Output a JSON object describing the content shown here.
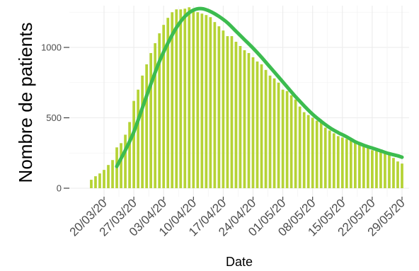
{
  "chart_data": {
    "type": "bar",
    "xlabel": "Date",
    "ylabel": "Nombre de patients",
    "x_ticks": [
      "20/03/20",
      "27/03/20",
      "03/04/20",
      "10/04/20",
      "17/04/20",
      "24/04/20",
      "01/05/20",
      "08/05/20",
      "15/05/20",
      "22/05/20",
      "29/05/20"
    ],
    "y_ticks": [
      0,
      500,
      1000
    ],
    "ylim": [
      0,
      1290
    ],
    "grid": true,
    "legend": "none",
    "series": [
      {
        "type": "bar",
        "color": "#b5d335",
        "x": [
          "17/03/20",
          "18/03/20",
          "19/03/20",
          "20/03/20",
          "21/03/20",
          "22/03/20",
          "23/03/20",
          "24/03/20",
          "25/03/20",
          "26/03/20",
          "27/03/20",
          "28/03/20",
          "29/03/20",
          "30/03/20",
          "31/03/20",
          "01/04/20",
          "02/04/20",
          "03/04/20",
          "04/04/20",
          "05/04/20",
          "06/04/20",
          "07/04/20",
          "08/04/20",
          "09/04/20",
          "10/04/20",
          "11/04/20",
          "12/04/20",
          "13/04/20",
          "14/04/20",
          "15/04/20",
          "16/04/20",
          "17/04/20",
          "18/04/20",
          "19/04/20",
          "20/04/20",
          "21/04/20",
          "22/04/20",
          "23/04/20",
          "24/04/20",
          "25/04/20",
          "26/04/20",
          "27/04/20",
          "28/04/20",
          "29/04/20",
          "30/04/20",
          "01/05/20",
          "02/05/20",
          "03/05/20",
          "04/05/20",
          "05/05/20",
          "06/05/20",
          "07/05/20",
          "08/05/20",
          "09/05/20",
          "10/05/20",
          "11/05/20",
          "12/05/20",
          "13/05/20",
          "14/05/20",
          "15/05/20",
          "16/05/20",
          "17/05/20",
          "18/05/20",
          "19/05/20",
          "20/05/20",
          "21/05/20",
          "22/05/20",
          "23/05/20",
          "24/05/20",
          "25/05/20",
          "26/05/20",
          "27/05/20",
          "28/05/20",
          "29/05/20"
        ],
        "values": [
          60,
          85,
          105,
          130,
          165,
          200,
          290,
          320,
          380,
          470,
          620,
          700,
          800,
          880,
          960,
          1030,
          1100,
          1160,
          1210,
          1250,
          1270,
          1270,
          1275,
          1285,
          1270,
          1250,
          1240,
          1230,
          1215,
          1180,
          1150,
          1120,
          1080,
          1080,
          1040,
          1010,
          980,
          960,
          930,
          900,
          880,
          840,
          800,
          780,
          750,
          700,
          690,
          660,
          630,
          580,
          540,
          520,
          500,
          480,
          465,
          430,
          410,
          390,
          370,
          360,
          350,
          340,
          330,
          310,
          300,
          290,
          270,
          265,
          260,
          250,
          235,
          215,
          190,
          175
        ]
      },
      {
        "type": "line",
        "color": "#3cbc4f",
        "x": [
          "23/03/20",
          "25/03/20",
          "27/03/20",
          "29/03/20",
          "31/03/20",
          "02/04/20",
          "04/04/20",
          "06/04/20",
          "08/04/20",
          "10/04/20",
          "12/04/20",
          "14/04/20",
          "16/04/20",
          "18/04/20",
          "20/04/20",
          "22/04/20",
          "24/04/20",
          "26/04/20",
          "28/04/20",
          "30/04/20",
          "02/05/20",
          "04/05/20",
          "06/05/20",
          "08/05/20",
          "10/05/20",
          "12/05/20",
          "14/05/20",
          "16/05/20",
          "18/05/20",
          "20/05/20",
          "22/05/20",
          "24/05/20",
          "26/05/20",
          "28/05/20",
          "29/05/20"
        ],
        "values": [
          155,
          270,
          400,
          570,
          740,
          900,
          1030,
          1140,
          1220,
          1265,
          1275,
          1255,
          1220,
          1175,
          1115,
          1055,
          995,
          930,
          860,
          790,
          720,
          650,
          585,
          525,
          475,
          430,
          395,
          365,
          330,
          305,
          285,
          265,
          245,
          230,
          220
        ]
      }
    ]
  }
}
